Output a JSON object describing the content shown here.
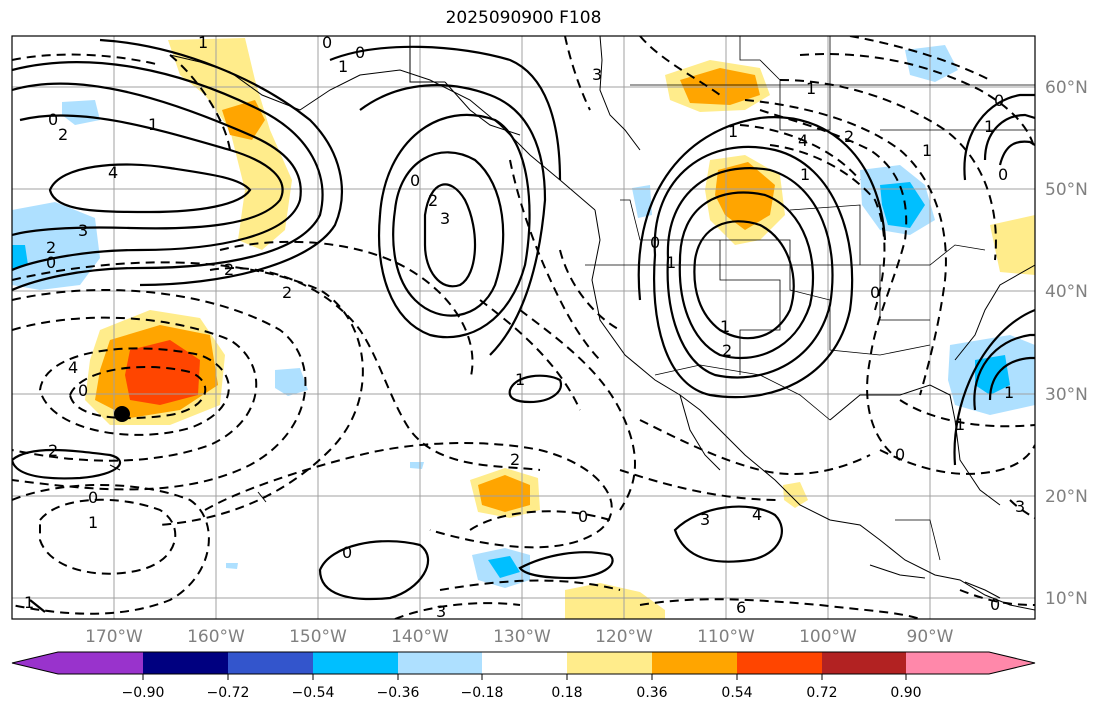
{
  "title": "2025090900 F108",
  "lat_labels": [
    "60°N",
    "50°N",
    "40°N",
    "30°N",
    "20°N",
    "10°N"
  ],
  "lon_labels": [
    "170°W",
    "160°W",
    "150°W",
    "140°W",
    "130°W",
    "120°W",
    "110°W",
    "100°W",
    "90°W"
  ],
  "colorbar": {
    "colors": [
      "#9933cc",
      "#000080",
      "#3355cc",
      "#00bfff",
      "#aee0ff",
      "#ffffff",
      "#ffec8b",
      "#ffa500",
      "#ff4500",
      "#b22222",
      "#ff88aa"
    ],
    "tick_labels": [
      "−0.90",
      "−0.72",
      "−0.54",
      "−0.36",
      "−0.18",
      "0.18",
      "0.36",
      "0.54",
      "0.72",
      "0.90"
    ]
  },
  "contour_labels": [
    "0",
    "2",
    "1",
    "4",
    "3",
    "2",
    "0",
    "2",
    "2",
    "0",
    "1",
    "0",
    "1",
    "0",
    "2",
    "3",
    "4",
    "2",
    "0",
    "0",
    "1",
    "1",
    "0",
    "0",
    "1",
    "2",
    "3",
    "6",
    "3",
    "4",
    "1",
    "1",
    "2",
    "0",
    "3",
    "4",
    "1",
    "2",
    "1",
    "1",
    "0",
    "1",
    "0",
    "1",
    "0",
    "1",
    "0",
    "3",
    "1",
    "0"
  ]
}
